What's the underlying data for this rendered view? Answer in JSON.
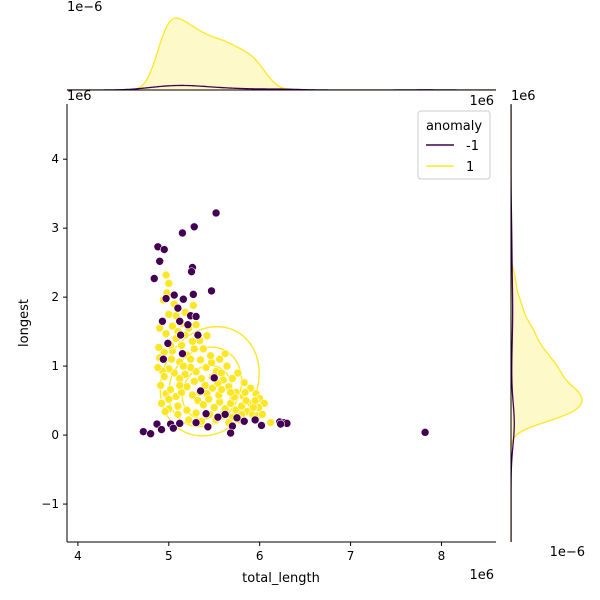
{
  "chart_data": {
    "type": "scatter",
    "xlabel": "total_length",
    "ylabel": "longest",
    "x_offset_label": "1e6",
    "y_offset_label": "1e6",
    "xlim": [
      3.88,
      8.6
    ],
    "ylim": [
      -1.55,
      4.8
    ],
    "x_ticks": [
      4,
      5,
      6,
      7,
      8
    ],
    "y_ticks": [
      -1,
      0,
      1,
      2,
      3,
      4
    ],
    "x_tick_labels": [
      "4",
      "5",
      "6",
      "7",
      "8"
    ],
    "y_tick_labels": [
      "−1",
      "0",
      "1",
      "2",
      "3",
      "4"
    ],
    "marginal_top_offset_label": "1e−6",
    "marginal_right_offset_label": "1e6",
    "marginal_right_bottom_offset_label": "1e−6",
    "legend": {
      "title": "anomaly",
      "placement": "top-right",
      "entries": [
        {
          "label": "-1",
          "color": "#440154"
        },
        {
          "label": "1",
          "color": "#fde725"
        }
      ]
    },
    "series": [
      {
        "name": "-1",
        "color": "#440154",
        "points": [
          [
            4.88,
            2.73
          ],
          [
            4.95,
            2.69
          ],
          [
            4.9,
            2.52
          ],
          [
            4.84,
            2.27
          ],
          [
            5.15,
            2.93
          ],
          [
            5.28,
            3.02
          ],
          [
            5.52,
            3.22
          ],
          [
            5.26,
            2.43
          ],
          [
            5.25,
            2.37
          ],
          [
            5.47,
            2.09
          ],
          [
            5.27,
            2.04
          ],
          [
            5.16,
            1.97
          ],
          [
            4.97,
            1.98
          ],
          [
            5.06,
            2.03
          ],
          [
            5.1,
            1.84
          ],
          [
            5.12,
            1.65
          ],
          [
            4.93,
            1.65
          ],
          [
            5.24,
            1.73
          ],
          [
            5.3,
            1.72
          ],
          [
            5.21,
            1.6
          ],
          [
            5.32,
            1.45
          ],
          [
            5.13,
            1.45
          ],
          [
            4.99,
            1.33
          ],
          [
            5.15,
            1.18
          ],
          [
            4.94,
            1.1
          ],
          [
            5.5,
            0.83
          ],
          [
            5.35,
            0.64
          ],
          [
            5.41,
            0.31
          ],
          [
            5.54,
            0.26
          ],
          [
            5.75,
            0.25
          ],
          [
            5.95,
            0.22
          ],
          [
            6.22,
            0.19
          ],
          [
            6.27,
            0.18
          ],
          [
            6.3,
            0.17
          ],
          [
            6.23,
            0.16
          ],
          [
            6.02,
            0.14
          ],
          [
            5.7,
            0.13
          ],
          [
            5.43,
            0.12
          ],
          [
            5.12,
            0.17
          ],
          [
            5.02,
            0.16
          ],
          [
            4.87,
            0.16
          ],
          [
            5.05,
            0.1
          ],
          [
            4.92,
            0.08
          ],
          [
            4.72,
            0.05
          ],
          [
            4.8,
            0.02
          ],
          [
            5.68,
            0.03
          ],
          [
            7.82,
            0.04
          ],
          [
            5.62,
            0.3
          ],
          [
            5.83,
            0.2
          ],
          [
            5.3,
            0.18
          ]
        ]
      },
      {
        "name": "1",
        "color": "#fde725",
        "points": [
          [
            4.97,
            2.32
          ],
          [
            5.0,
            2.2
          ],
          [
            4.98,
            2.06
          ],
          [
            5.08,
            1.73
          ],
          [
            5.18,
            1.78
          ],
          [
            5.27,
            1.88
          ],
          [
            5.22,
            1.55
          ],
          [
            5.34,
            1.37
          ],
          [
            5.42,
            1.44
          ],
          [
            4.94,
            1.96
          ],
          [
            5.04,
            1.58
          ],
          [
            4.9,
            1.55
          ],
          [
            4.97,
            1.47
          ],
          [
            5.08,
            1.4
          ],
          [
            5.14,
            1.3
          ],
          [
            4.89,
            1.27
          ],
          [
            4.95,
            1.2
          ],
          [
            5.03,
            1.1
          ],
          [
            5.12,
            1.06
          ],
          [
            5.2,
            1.16
          ],
          [
            5.28,
            1.25
          ],
          [
            5.35,
            1.09
          ],
          [
            5.41,
            0.98
          ],
          [
            5.47,
            1.05
          ],
          [
            5.52,
            0.92
          ],
          [
            5.58,
            0.9
          ],
          [
            5.64,
            1.0
          ],
          [
            5.7,
            0.82
          ],
          [
            5.76,
            0.9
          ],
          [
            5.83,
            0.76
          ],
          [
            5.9,
            0.68
          ],
          [
            5.96,
            0.6
          ],
          [
            6.0,
            0.53
          ],
          [
            6.05,
            0.46
          ],
          [
            5.99,
            0.4
          ],
          [
            5.9,
            0.46
          ],
          [
            5.82,
            0.56
          ],
          [
            5.74,
            0.62
          ],
          [
            5.66,
            0.7
          ],
          [
            5.6,
            0.8
          ],
          [
            5.54,
            0.75
          ],
          [
            5.48,
            0.68
          ],
          [
            5.42,
            0.6
          ],
          [
            5.36,
            0.82
          ],
          [
            5.3,
            0.92
          ],
          [
            5.24,
            0.98
          ],
          [
            5.18,
            0.88
          ],
          [
            5.12,
            0.82
          ],
          [
            5.06,
            0.9
          ],
          [
            5.0,
            0.96
          ],
          [
            4.93,
            0.93
          ],
          [
            4.88,
            0.98
          ],
          [
            4.91,
            0.72
          ],
          [
            4.97,
            0.6
          ],
          [
            5.02,
            0.66
          ],
          [
            5.08,
            0.56
          ],
          [
            5.14,
            0.62
          ],
          [
            5.2,
            0.7
          ],
          [
            5.26,
            0.58
          ],
          [
            5.32,
            0.5
          ],
          [
            5.38,
            0.44
          ],
          [
            5.44,
            0.52
          ],
          [
            5.5,
            0.4
          ],
          [
            5.56,
            0.48
          ],
          [
            5.62,
            0.38
          ],
          [
            5.68,
            0.46
          ],
          [
            5.74,
            0.36
          ],
          [
            5.8,
            0.42
          ],
          [
            5.86,
            0.34
          ],
          [
            5.92,
            0.3
          ],
          [
            5.98,
            0.28
          ],
          [
            6.03,
            0.3
          ],
          [
            5.93,
            0.4
          ],
          [
            5.85,
            0.5
          ],
          [
            5.72,
            0.55
          ],
          [
            5.55,
            0.58
          ],
          [
            5.4,
            0.72
          ],
          [
            5.28,
            0.78
          ],
          [
            5.16,
            1.0
          ],
          [
            5.04,
            1.22
          ],
          [
            4.95,
            0.85
          ],
          [
            4.92,
            0.46
          ],
          [
            5.0,
            0.38
          ],
          [
            5.1,
            0.42
          ],
          [
            5.2,
            0.36
          ],
          [
            5.3,
            0.32
          ],
          [
            5.45,
            0.3
          ],
          [
            5.6,
            0.28
          ],
          [
            5.7,
            0.26
          ],
          [
            5.8,
            0.3
          ],
          [
            5.95,
            0.5
          ],
          [
            6.12,
            0.18
          ],
          [
            5.66,
            0.18
          ],
          [
            5.36,
            0.2
          ],
          [
            5.1,
            0.3
          ],
          [
            4.96,
            0.34
          ],
          [
            5.22,
            0.22
          ],
          [
            5.52,
            0.22
          ],
          [
            5.78,
            0.22
          ],
          [
            5.26,
            1.36
          ],
          [
            5.18,
            1.45
          ],
          [
            5.1,
            1.5
          ],
          [
            5.0,
            1.75
          ],
          [
            5.06,
            1.9
          ],
          [
            5.14,
            1.62
          ],
          [
            5.3,
            1.6
          ],
          [
            5.38,
            1.25
          ],
          [
            5.46,
            1.15
          ],
          [
            5.62,
            1.18
          ],
          [
            5.56,
            1.1
          ],
          [
            5.24,
            1.1
          ],
          [
            5.02,
            1.3
          ],
          [
            4.9,
            1.12
          ],
          [
            5.34,
            0.62
          ],
          [
            5.68,
            0.62
          ],
          [
            5.84,
            0.62
          ],
          [
            5.48,
            0.84
          ],
          [
            5.58,
            0.66
          ],
          [
            5.12,
            0.72
          ],
          [
            5.0,
            0.52
          ]
        ]
      }
    ]
  }
}
